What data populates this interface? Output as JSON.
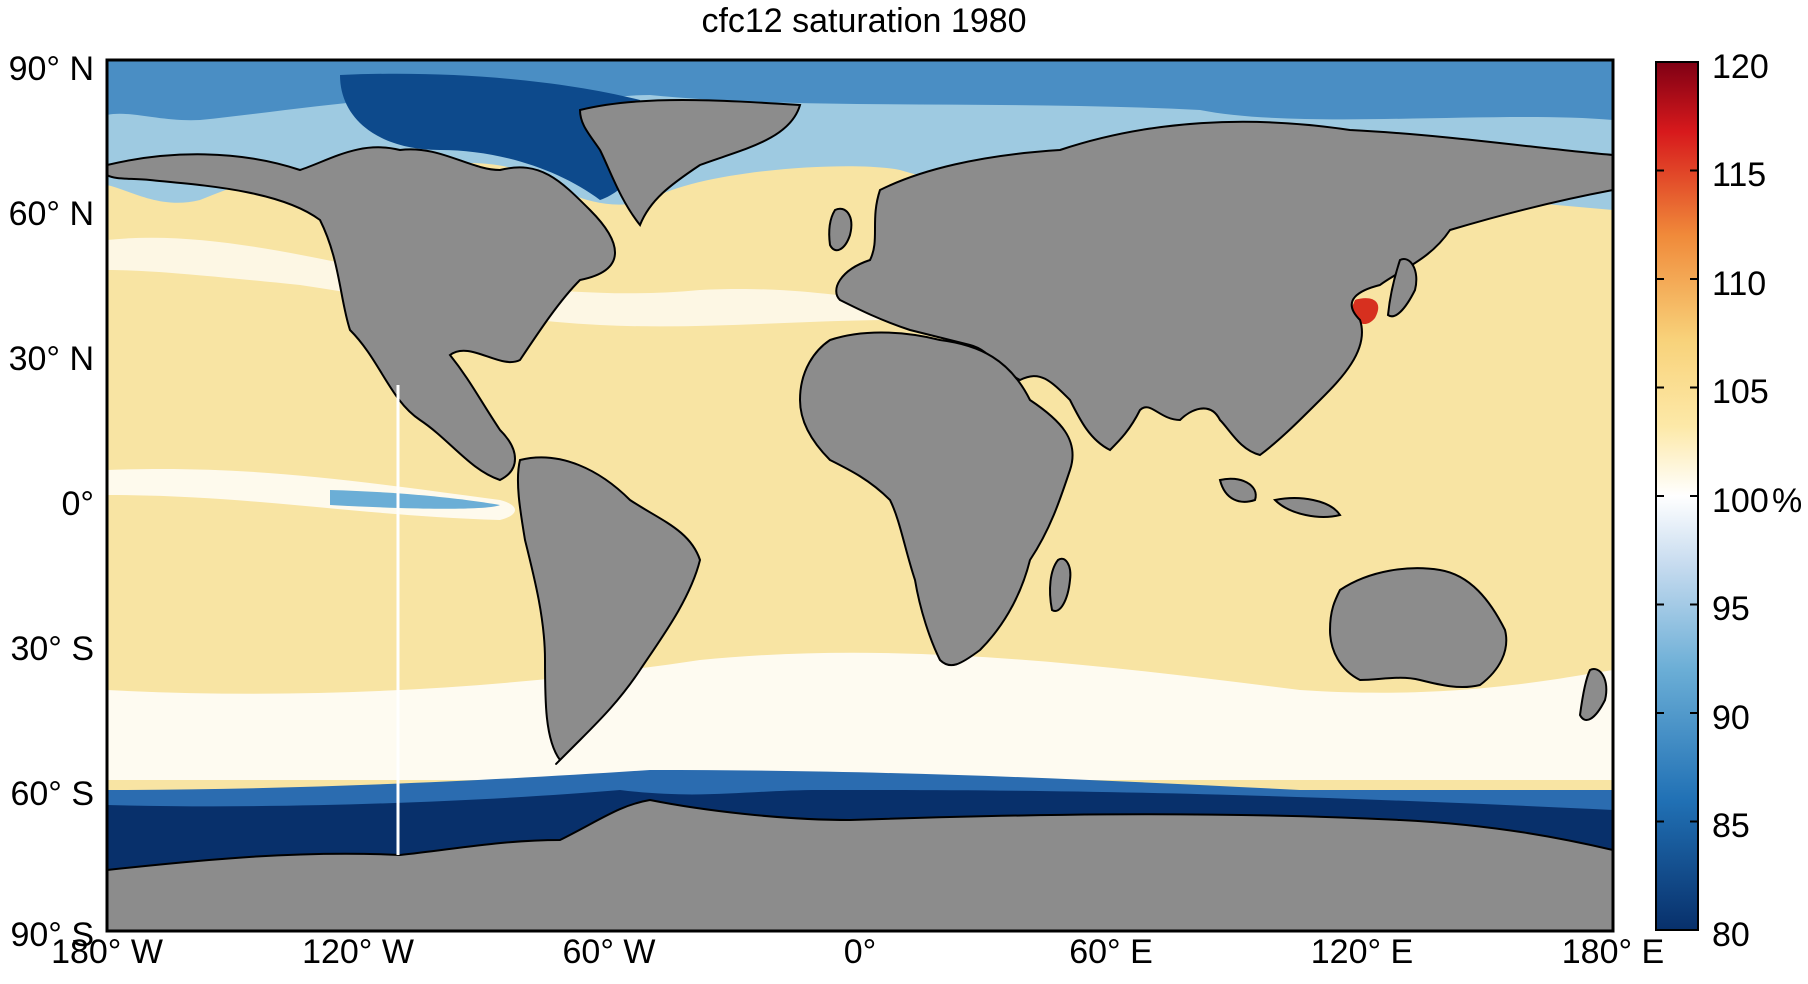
{
  "title": "cfc12 saturation 1980",
  "map": {
    "lat_ticks": [
      {
        "label": "90° N",
        "lat": 90
      },
      {
        "label": "60° N",
        "lat": 60
      },
      {
        "label": "30° N",
        "lat": 30
      },
      {
        "label": "0°",
        "lat": 0
      },
      {
        "label": "30° S",
        "lat": -30
      },
      {
        "label": "60° S",
        "lat": -60
      },
      {
        "label": "90° S",
        "lat": -90
      }
    ],
    "lon_ticks": [
      {
        "label": "180° W",
        "lon": -180
      },
      {
        "label": "120° W",
        "lon": -120
      },
      {
        "label": "60° W",
        "lon": -60
      },
      {
        "label": "0°",
        "lon": 0
      },
      {
        "label": "60° E",
        "lon": 60
      },
      {
        "label": "120° E",
        "lon": 120
      },
      {
        "label": "180° E",
        "lon": 180
      }
    ],
    "land_color": "#8c8c8c",
    "ocean_color": "#f7e3a0"
  },
  "colorbar": {
    "min": 80,
    "max": 120,
    "unit": "%",
    "ticks": [
      {
        "label": "120",
        "value": 120
      },
      {
        "label": "115",
        "value": 115
      },
      {
        "label": "110",
        "value": 110
      },
      {
        "label": "105",
        "value": 105
      },
      {
        "label": "100",
        "value": 100
      },
      {
        "label": "95",
        "value": 95
      },
      {
        "label": "90",
        "value": 90
      },
      {
        "label": "85",
        "value": 85
      },
      {
        "label": "80",
        "value": 80
      }
    ],
    "colors": [
      "#08306b",
      "#2171b5",
      "#6baed6",
      "#c6dbef",
      "#ffffff",
      "#fde9a8",
      "#f8b75a",
      "#e6482a",
      "#7f0014"
    ]
  }
}
